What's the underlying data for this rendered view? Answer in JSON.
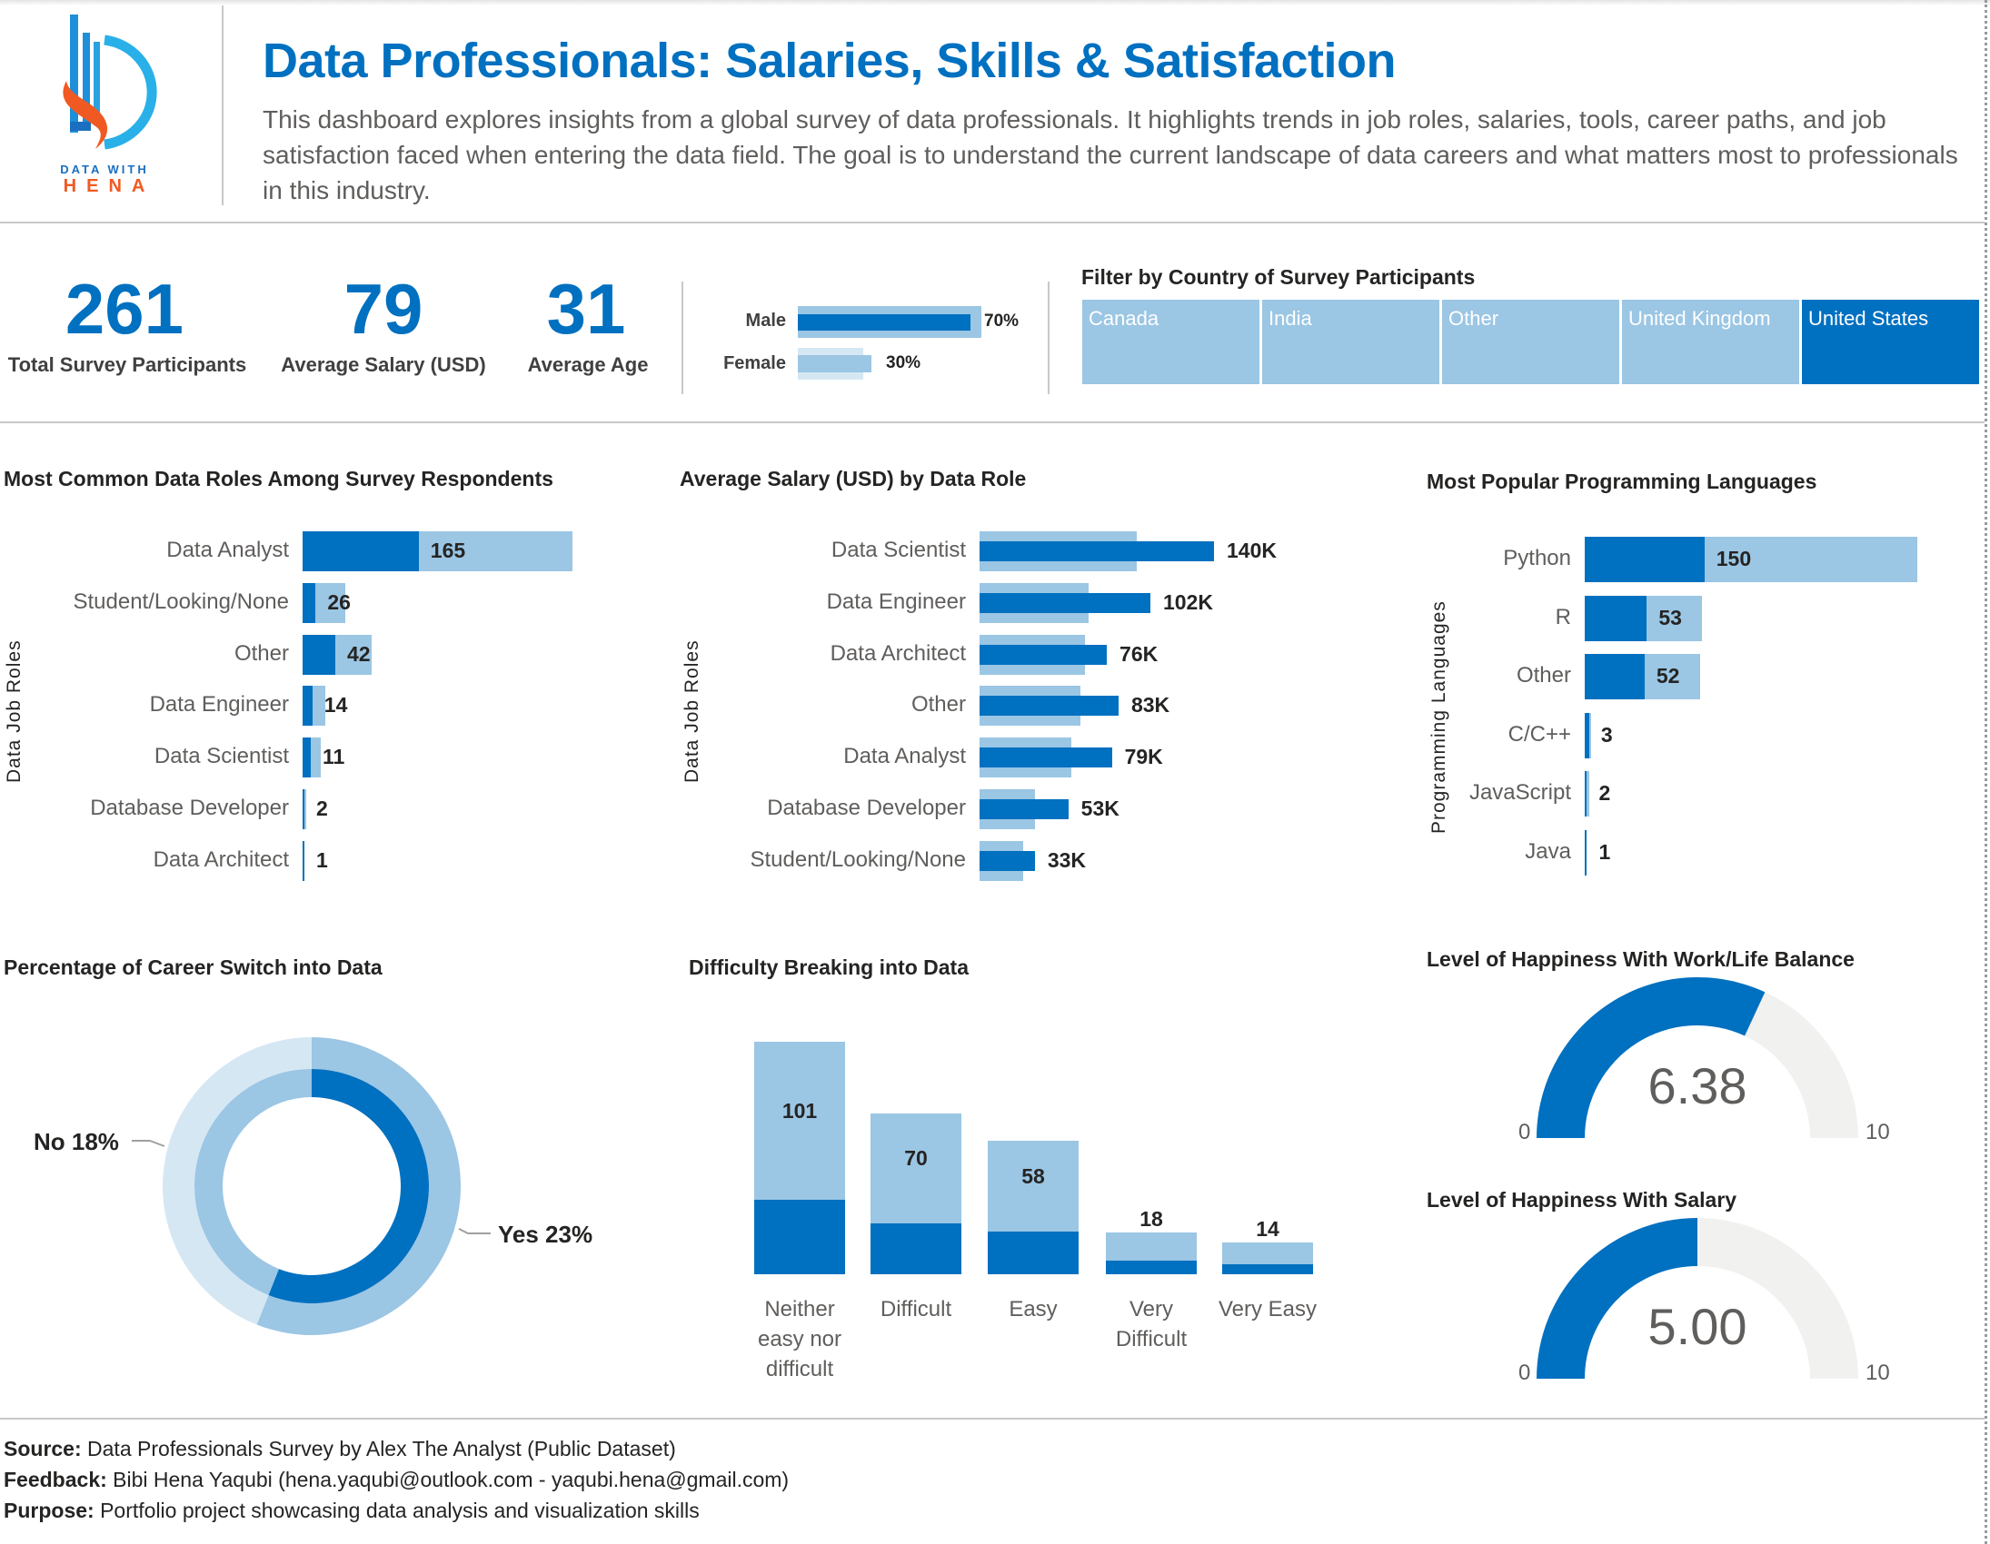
{
  "colors": {
    "primary": "#0070c0",
    "light": "#9bc6e4",
    "pale": "#d6e7f4",
    "gauge_bg": "#f1f1f0"
  },
  "logo": {
    "line1": "DATA WITH",
    "line2": "HENA"
  },
  "header": {
    "title": "Data Professionals: Salaries, Skills & Satisfaction",
    "description": "This dashboard explores insights from a global survey of data professionals. It highlights trends in job roles, salaries, tools, career paths, and job satisfaction faced when entering the data field. The goal is to understand the current landscape of data careers and what matters most to professionals in this industry."
  },
  "kpis": [
    {
      "value": "261",
      "label": "Total Survey Participants"
    },
    {
      "value": "79",
      "label": "Average Salary (USD)"
    },
    {
      "value": "31",
      "label": "Average Age"
    }
  ],
  "gender": [
    {
      "label": "Male",
      "pct": "70%",
      "overall": 70,
      "selected": 70
    },
    {
      "label": "Female",
      "pct": "30%",
      "overall": 25,
      "selected": 30
    }
  ],
  "filter": {
    "title": "Filter by Country of Survey Participants",
    "options": [
      "Canada",
      "India",
      "Other",
      "United Kingdom",
      "United States"
    ],
    "selected": "United States"
  },
  "chart_data": [
    {
      "id": "roles",
      "type": "bar",
      "orientation": "horizontal",
      "title": "Most Common Data Roles Among Survey Respondents",
      "ylabel": "Data Job Roles",
      "categories": [
        "Data Analyst",
        "Student/Looking/None",
        "Other",
        "Data Engineer",
        "Data Scientist",
        "Database Developer",
        "Data Architect"
      ],
      "values": [
        165,
        26,
        42,
        14,
        11,
        2,
        1
      ],
      "highlighted": [
        71,
        8,
        20,
        6,
        5,
        1,
        1
      ]
    },
    {
      "id": "salary",
      "type": "bar",
      "orientation": "horizontal",
      "title": "Average Salary (USD) by Data Role",
      "ylabel": "Data Job Roles",
      "categories": [
        "Data Scientist",
        "Data Engineer",
        "Data Architect",
        "Other",
        "Data Analyst",
        "Database Developer",
        "Student/Looking/None"
      ],
      "labels": [
        "140K",
        "102K",
        "76K",
        "83K",
        "79K",
        "53K",
        "33K"
      ],
      "values": [
        140,
        102,
        76,
        83,
        79,
        53,
        33
      ],
      "overall": [
        94,
        65,
        63,
        60,
        55,
        33,
        26
      ]
    },
    {
      "id": "languages",
      "type": "bar",
      "orientation": "horizontal",
      "title": "Most Popular Programming Languages",
      "ylabel": "Programming Languages",
      "categories": [
        "Python",
        "R",
        "Other",
        "C/C++",
        "JavaScript",
        "Java"
      ],
      "values": [
        150,
        53,
        52,
        3,
        2,
        1
      ],
      "highlighted": [
        54,
        28,
        27,
        2,
        1,
        1
      ]
    },
    {
      "id": "career_switch",
      "type": "pie",
      "title": "Percentage of Career Switch into Data",
      "labels": [
        "No 18%",
        "Yes 23%"
      ],
      "outer_yes_fraction": 0.56,
      "inner_yes_fraction": 0.56
    },
    {
      "id": "difficulty",
      "type": "bar",
      "title": "Difficulty Breaking into Data",
      "categories": [
        "Neither easy nor difficult",
        "Difficult",
        "Easy",
        "Very Difficult",
        "Very Easy"
      ],
      "values": [
        101,
        70,
        58,
        18,
        14
      ],
      "highlighted": [
        38,
        26,
        22,
        7,
        5
      ]
    },
    {
      "id": "work_life",
      "type": "gauge",
      "title": "Level of Happiness With Work/Life Balance",
      "value": 6.38,
      "label": "6.38",
      "min": "0",
      "max": "10"
    },
    {
      "id": "salary_happiness",
      "type": "gauge",
      "title": "Level of Happiness With Salary",
      "value": 5.0,
      "label": "5.00",
      "min": "0",
      "max": "10"
    }
  ],
  "footer": [
    {
      "key": "Source:",
      "text": " Data Professionals Survey by Alex The Analyst (Public Dataset)"
    },
    {
      "key": "Feedback:",
      "text": " Bibi Hena Yaqubi (hena.yaqubi@outlook.com - yaqubi.hena@gmail.com)"
    },
    {
      "key": "Purpose:",
      "text": " Portfolio project showcasing data analysis and visualization skills"
    }
  ]
}
